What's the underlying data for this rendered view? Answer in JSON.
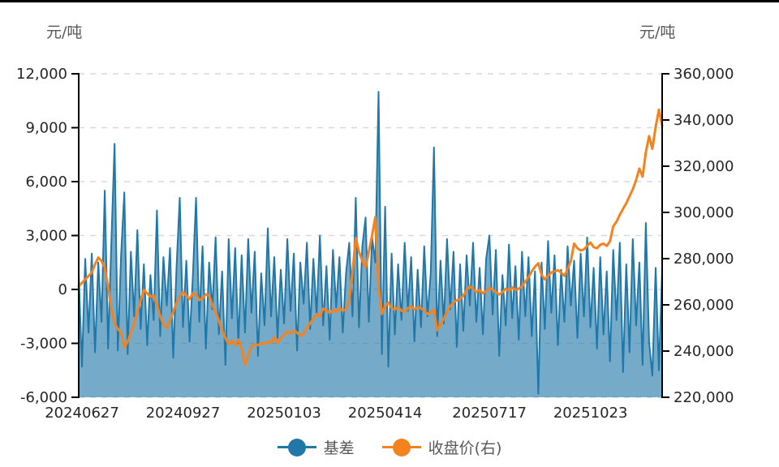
{
  "page": {
    "top_border_color": "#000000",
    "background": "#ffffff"
  },
  "chart_data": {
    "type": "combo",
    "description": "Daily basis (area, left axis) vs futures closing price (line, right axis)",
    "x_tick_labels": [
      "20240627",
      "20240927",
      "20250103",
      "20250414",
      "20250717",
      "20251023"
    ],
    "x_tick_indices": [
      1,
      32,
      63,
      94,
      126,
      157
    ],
    "left_axis": {
      "title": "元/吨",
      "min": -6000,
      "max": 12000,
      "tick_step": 3000,
      "tick_labels": [
        "12,000",
        "9,000",
        "6,000",
        "3,000",
        "0",
        "-3,000",
        "-6,000"
      ]
    },
    "right_axis": {
      "title": "元/吨",
      "min": 220000,
      "max": 360000,
      "tick_step": 20000,
      "tick_labels": [
        "360,000",
        "340,000",
        "320,000",
        "300,000",
        "280,000",
        "260,000",
        "240,000",
        "220,000"
      ]
    },
    "grid": {
      "show": true,
      "color": "#d9d9d9",
      "dash": "7 7"
    },
    "text_colors": {
      "tick": "#262626",
      "axis_title": "#595959",
      "legend": "#595959"
    },
    "legend": {
      "position": "bottom",
      "items": [
        {
          "label": "基差",
          "color": "#2077A8"
        },
        {
          "label": "收盘价(右)",
          "color": "#F5821F"
        }
      ]
    },
    "series": [
      {
        "name": "基差",
        "type": "area",
        "axis": "left",
        "color": "#2077A8",
        "fill_opacity": 0.62,
        "values": [
          900,
          -4300,
          1700,
          -2400,
          2000,
          -3500,
          1500,
          -1800,
          5500,
          -3300,
          2600,
          8100,
          -3400,
          1900,
          5400,
          -3600,
          2100,
          -1500,
          3300,
          -2200,
          1400,
          -3100,
          800,
          -1700,
          4400,
          -2600,
          1800,
          -900,
          2300,
          -3800,
          1200,
          5100,
          -2100,
          1600,
          -2900,
          700,
          5100,
          -1800,
          2400,
          -3300,
          1500,
          -1100,
          2900,
          -2500,
          1000,
          -4200,
          2800,
          -1600,
          2300,
          -3000,
          1900,
          -2400,
          2800,
          -1300,
          2100,
          -3700,
          900,
          -2000,
          3400,
          -1500,
          1800,
          -2700,
          1100,
          -1900,
          2800,
          -1200,
          2000,
          -3400,
          1500,
          -800,
          2600,
          -2200,
          1700,
          -1400,
          3000,
          -2000,
          1300,
          -2800,
          2200,
          -1000,
          1800,
          -2400,
          900,
          2600,
          -1500,
          5100,
          -2100,
          2400,
          4000,
          -1800,
          2900,
          1500,
          11000,
          -3600,
          4600,
          -4300,
          2000,
          -2500,
          1400,
          -1700,
          2600,
          -1200,
          1800,
          -2900,
          1100,
          -2100,
          2400,
          -1500,
          900,
          7900,
          -2600,
          1600,
          -1900,
          2800,
          -1100,
          2100,
          -3200,
          1400,
          -2300,
          1900,
          -900,
          2600,
          -1800,
          1200,
          -2500,
          1700,
          3000,
          -1400,
          2200,
          -3700,
          800,
          -2000,
          2500,
          -1600,
          1300,
          -2800,
          2100,
          -1500,
          1800,
          -2600,
          1000,
          -5800,
          1500,
          -2200,
          2700,
          -1300,
          1900,
          -3100,
          1100,
          -1800,
          2400,
          -900,
          1600,
          -2700,
          2000,
          -1500,
          2900,
          -2100,
          1200,
          -3300,
          1800,
          -2500,
          1000,
          -4000,
          2200,
          -1700,
          2600,
          -4600,
          1400,
          -3500,
          2800,
          -2000,
          1500,
          -4200,
          3700,
          -2900,
          -4800,
          1200,
          -4500,
          1100
        ]
      },
      {
        "name": "收盘价(右)",
        "type": "line",
        "axis": "right",
        "color": "#F5821F",
        "values": [
          268000,
          269500,
          271000,
          272500,
          274000,
          277500,
          280500,
          279000,
          276000,
          268000,
          258000,
          252000,
          249500,
          248000,
          241500,
          244000,
          248000,
          252000,
          257000,
          262000,
          266500,
          265000,
          263500,
          264000,
          260000,
          255000,
          251500,
          250000,
          253000,
          257000,
          261000,
          263500,
          265500,
          264000,
          262500,
          265000,
          264500,
          262000,
          263000,
          264500,
          264000,
          260000,
          257000,
          253000,
          249000,
          245500,
          243000,
          244500,
          242500,
          245000,
          241000,
          234000,
          238000,
          242000,
          243000,
          242500,
          243500,
          243000,
          244000,
          243500,
          246000,
          243500,
          245500,
          247000,
          248500,
          247500,
          249000,
          248000,
          246500,
          247500,
          250000,
          252000,
          254000,
          256000,
          255000,
          258500,
          257500,
          256500,
          258000,
          257000,
          258500,
          257500,
          258000,
          262000,
          274000,
          289000,
          283000,
          279000,
          276000,
          283000,
          290000,
          298000,
          268000,
          256000,
          259500,
          261000,
          258500,
          258000,
          259000,
          257500,
          257000,
          258500,
          259500,
          258000,
          259000,
          258500,
          257500,
          256000,
          257000,
          258000,
          249000,
          251500,
          254000,
          257000,
          259500,
          261000,
          262000,
          262500,
          264000,
          266500,
          268000,
          267000,
          265500,
          266500,
          265000,
          266000,
          267500,
          266500,
          265500,
          264500,
          265500,
          267000,
          266000,
          267500,
          266500,
          267000,
          268000,
          270000,
          272000,
          274500,
          276500,
          278000,
          273000,
          271000,
          272500,
          274000,
          274500,
          275000,
          274000,
          272500,
          275500,
          279000,
          286500,
          284500,
          283500,
          284000,
          285500,
          287000,
          285000,
          284500,
          286000,
          286500,
          285500,
          287500,
          294000,
          296000,
          299000,
          301500,
          304000,
          307000,
          310000,
          314000,
          319000,
          315500,
          326000,
          333000,
          327500,
          337000,
          344500,
          337500
        ]
      }
    ]
  }
}
